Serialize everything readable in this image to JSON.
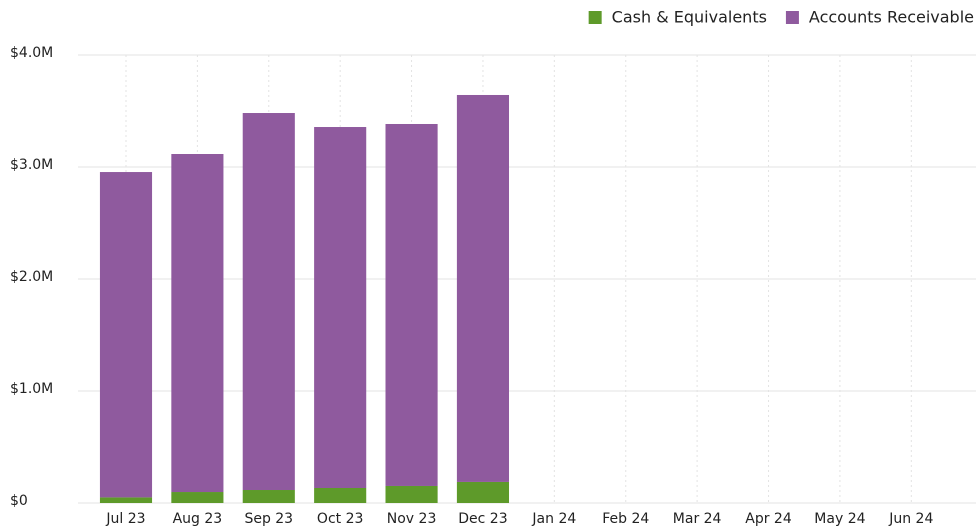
{
  "chart_data": {
    "type": "stacked_bar",
    "categories": [
      "Jul 23",
      "Aug 23",
      "Sep 23",
      "Oct 23",
      "Nov 23",
      "Dec 23",
      "Jan 24",
      "Feb 24",
      "Mar 24",
      "Apr 24",
      "May 24",
      "Jun 24"
    ],
    "series": [
      {
        "name": "Cash & Equivalents",
        "color": "#5e9a2a",
        "values": [
          50000,
          98000,
          116000,
          134000,
          152000,
          188000,
          null,
          null,
          null,
          null,
          null,
          null
        ]
      },
      {
        "name": "Accounts Receivable",
        "color": "#8f5a9e",
        "values": [
          2905000,
          3018000,
          3366000,
          3223000,
          3232000,
          3455000,
          null,
          null,
          null,
          null,
          null,
          null
        ]
      }
    ],
    "ylim": [
      0,
      4000000
    ],
    "yticks": [
      {
        "value": 0,
        "label": "$0"
      },
      {
        "value": 1000000,
        "label": "$1.0M"
      },
      {
        "value": 2000000,
        "label": "$2.0M"
      },
      {
        "value": 3000000,
        "label": "$3.0M"
      },
      {
        "value": 4000000,
        "label": "$4.0M"
      }
    ],
    "grid": true,
    "legend": "top-right"
  }
}
